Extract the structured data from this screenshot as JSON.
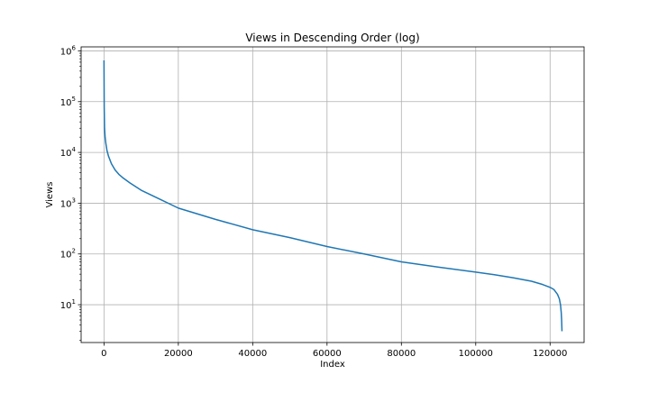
{
  "chart_data": {
    "type": "line",
    "title": "Views in Descending Order (log)",
    "xlabel": "Index",
    "ylabel": "Views",
    "x_scale": "linear",
    "y_scale": "log",
    "xlim": [
      -6150,
      129150
    ],
    "ylim": [
      1.8,
      1200000
    ],
    "grid": true,
    "legend": "none",
    "x_ticks": [
      {
        "value": 0,
        "label": "0"
      },
      {
        "value": 20000,
        "label": "20000"
      },
      {
        "value": 40000,
        "label": "40000"
      },
      {
        "value": 60000,
        "label": "60000"
      },
      {
        "value": 80000,
        "label": "80000"
      },
      {
        "value": 100000,
        "label": "100000"
      },
      {
        "value": 120000,
        "label": "120000"
      }
    ],
    "y_ticks": [
      {
        "value": 10,
        "base": "10",
        "exp": "1"
      },
      {
        "value": 100,
        "base": "10",
        "exp": "2"
      },
      {
        "value": 1000,
        "base": "10",
        "exp": "3"
      },
      {
        "value": 10000,
        "base": "10",
        "exp": "4"
      },
      {
        "value": 100000,
        "base": "10",
        "exp": "5"
      },
      {
        "value": 1000000,
        "base": "10",
        "exp": "6"
      }
    ],
    "series": [
      {
        "color": "#1f77b4",
        "x": [
          0,
          60,
          150,
          300,
          500,
          800,
          1200,
          2000,
          3000,
          4000,
          5000,
          7000,
          10000,
          15000,
          20000,
          30000,
          40000,
          50000,
          60000,
          70000,
          80000,
          90000,
          100000,
          105000,
          110000,
          115000,
          118000,
          120000,
          121000,
          122000,
          122500,
          122800,
          123000,
          123100,
          123200
        ],
        "y": [
          650000,
          80000,
          30000,
          20000,
          15000,
          11000,
          8500,
          6000,
          4500,
          3700,
          3200,
          2500,
          1800,
          1200,
          800,
          480,
          300,
          210,
          140,
          100,
          70,
          55,
          44,
          39,
          34,
          29,
          25,
          22,
          20,
          16,
          13,
          10,
          7,
          5,
          3
        ]
      }
    ]
  }
}
